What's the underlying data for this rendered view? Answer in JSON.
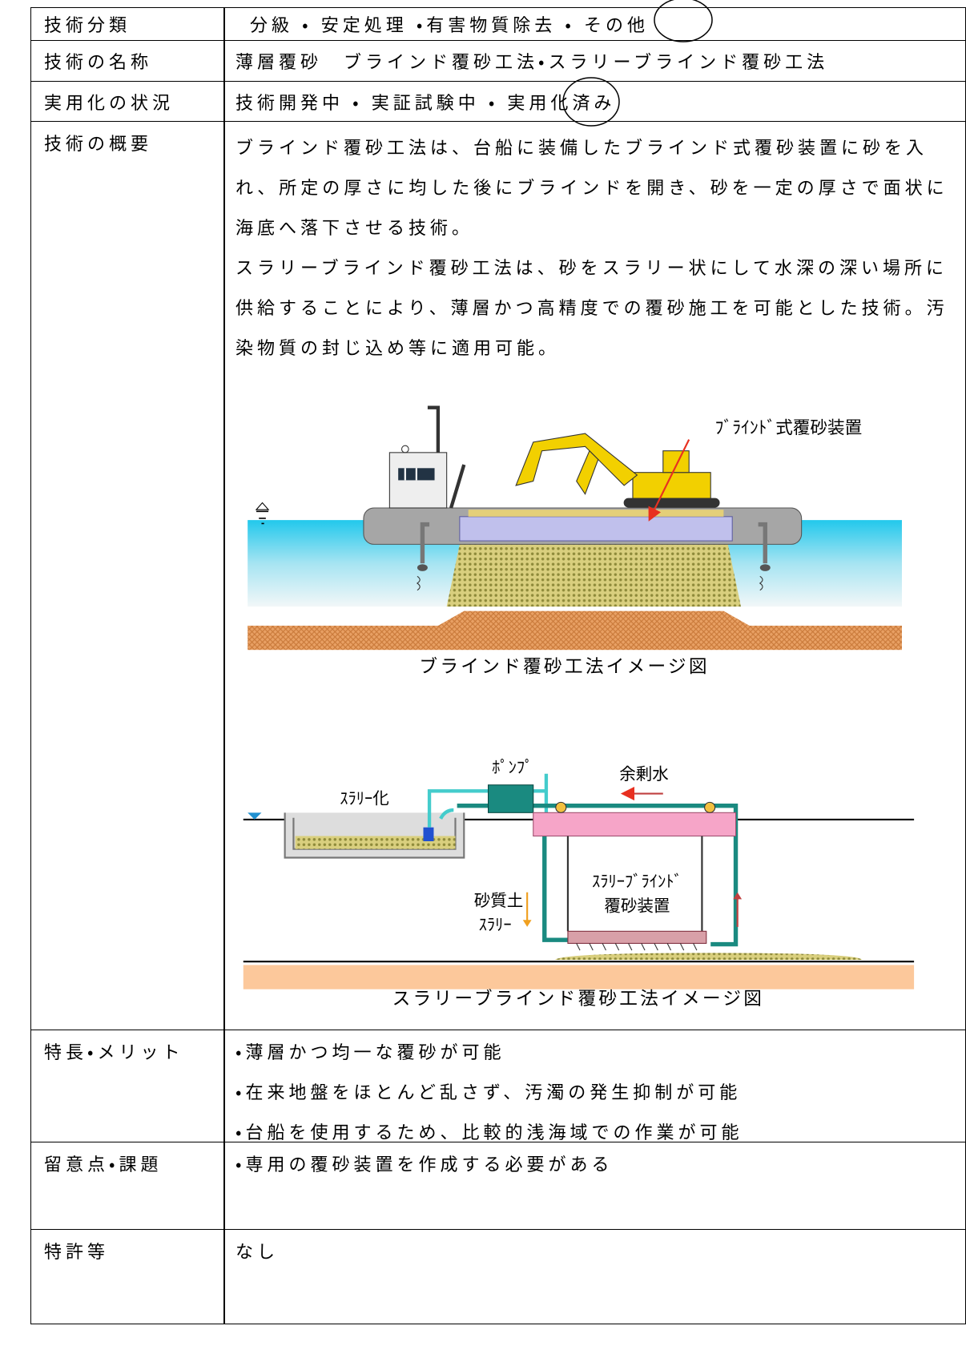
{
  "table": {
    "rows": [
      {
        "label": "技術分類",
        "lines": [
          "分級 ・ 安定処理 ・有害物質除去 ・ その他"
        ]
      },
      {
        "label": "技術の名称",
        "lines": [
          "薄層覆砂　ブラインド覆砂工法・スラリーブラインド覆砂工法"
        ]
      },
      {
        "label": "実用化の状況",
        "lines": [
          "技術開発中 ・ 実証試験中 ・ 実用化済み"
        ]
      },
      {
        "label": "技術の概要",
        "lines": [
          "ブラインド覆砂工法は、台船に装備したブラインド式覆砂装置に砂を入",
          "れ、所定の厚さに均した後にブラインドを開き、砂を一定の厚さで面状に",
          "海底へ落下させる技術。",
          "スラリーブラインド覆砂工法は、砂をスラリー状にして水深の深い場所に",
          "供給することにより、薄層かつ高精度での覆砂施工を可能とした技術。汚",
          "染物質の封じ込め等に適用可能。"
        ],
        "figures": [
          {
            "caption": "ブラインド覆砂工法イメージ図",
            "labels": [
              "ﾌﾞﾗｲﾝﾄﾞ式覆砂装置"
            ]
          },
          {
            "caption": "スラリーブラインド覆砂工法イメージ図",
            "labels": [
              "ﾎﾟﾝﾌﾟ",
              "余剰水",
              "ｽﾗﾘｰ化",
              "ｽﾗﾘｰﾌﾞﾗｲﾝﾄﾞ",
              "覆砂装置",
              "砂質土",
              "ｽﾗﾘｰ"
            ]
          }
        ]
      },
      {
        "label": "特長・メリット",
        "lines": [
          "・薄層かつ均一な覆砂が可能",
          "・在来地盤をほとんど乱さず、汚濁の発生抑制が可能",
          "・台船を使用するため、比較的浅海域での作業が可能"
        ]
      },
      {
        "label": "留意点・課題",
        "lines": [
          "・専用の覆砂装置を作成する必要がある"
        ]
      },
      {
        "label": "特許等",
        "lines": [
          "なし"
        ]
      }
    ]
  }
}
